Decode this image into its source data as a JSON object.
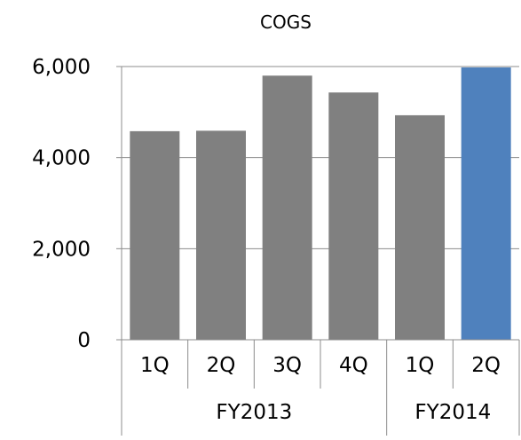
{
  "chart_data": {
    "type": "bar",
    "title": "COGS",
    "xlabel": "",
    "ylabel": "",
    "ylim": [
      0,
      6000
    ],
    "yticks": [
      0,
      2000,
      4000,
      6000
    ],
    "ytick_labels": [
      "0",
      "2,000",
      "4,000",
      "6,000"
    ],
    "grid": true,
    "categories": [
      "1Q",
      "2Q",
      "3Q",
      "4Q",
      "1Q",
      "2Q"
    ],
    "groups": [
      {
        "label": "FY2013",
        "count": 4
      },
      {
        "label": "FY2014",
        "count": 2
      }
    ],
    "values": [
      4580,
      4590,
      5800,
      5430,
      4930,
      5980
    ],
    "bar_colors": [
      "#808080",
      "#808080",
      "#808080",
      "#808080",
      "#808080",
      "#4f81bd"
    ]
  }
}
